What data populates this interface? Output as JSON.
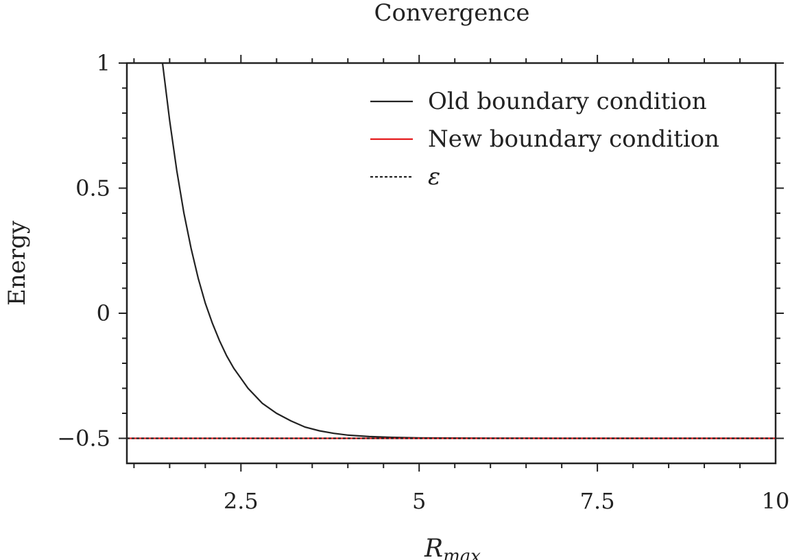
{
  "chart_data": {
    "type": "line",
    "title": "Convergence",
    "xlabel_main": "R",
    "xlabel_sub": "max",
    "ylabel": "Energy",
    "xlim": [
      0.9,
      10
    ],
    "ylim": [
      -0.6,
      1
    ],
    "x_ticks": [
      {
        "value": 2.5,
        "label": "2.5"
      },
      {
        "value": 5,
        "label": "5"
      },
      {
        "value": 7.5,
        "label": "7.5"
      },
      {
        "value": 10,
        "label": "10"
      }
    ],
    "y_ticks": [
      {
        "value": -0.5,
        "label": "−0.5"
      },
      {
        "value": 0,
        "label": "0"
      },
      {
        "value": 0.5,
        "label": "0.5"
      },
      {
        "value": 1,
        "label": "1"
      }
    ],
    "x_minor_step": 0.5,
    "y_minor_step": 0.1,
    "grid": false,
    "legend_position": "top-right",
    "series": [
      {
        "name": "Old boundary condition",
        "color": "#222222",
        "style": "solid",
        "x": [
          1.4,
          1.5,
          1.6,
          1.7,
          1.8,
          1.9,
          2.0,
          2.1,
          2.2,
          2.3,
          2.4,
          2.5,
          2.6,
          2.8,
          3.0,
          3.2,
          3.4,
          3.6,
          3.8,
          4.0,
          4.3,
          4.6,
          5.0,
          5.5,
          6.0,
          7.0,
          8.0,
          9.0,
          10.0
        ],
        "y": [
          1.0,
          0.77,
          0.57,
          0.4,
          0.26,
          0.14,
          0.04,
          -0.04,
          -0.11,
          -0.17,
          -0.22,
          -0.26,
          -0.3,
          -0.36,
          -0.4,
          -0.43,
          -0.455,
          -0.47,
          -0.48,
          -0.487,
          -0.493,
          -0.496,
          -0.498,
          -0.499,
          -0.4995,
          -0.5,
          -0.5,
          -0.5,
          -0.5
        ]
      },
      {
        "name": "New boundary condition",
        "color": "#e41a1c",
        "style": "solid",
        "x": [
          0.9,
          10
        ],
        "y": [
          -0.5,
          -0.5
        ]
      },
      {
        "name": "ε",
        "color": "#222222",
        "style": "dotted",
        "x": [
          0.9,
          10
        ],
        "y": [
          -0.5,
          -0.5
        ]
      }
    ]
  }
}
